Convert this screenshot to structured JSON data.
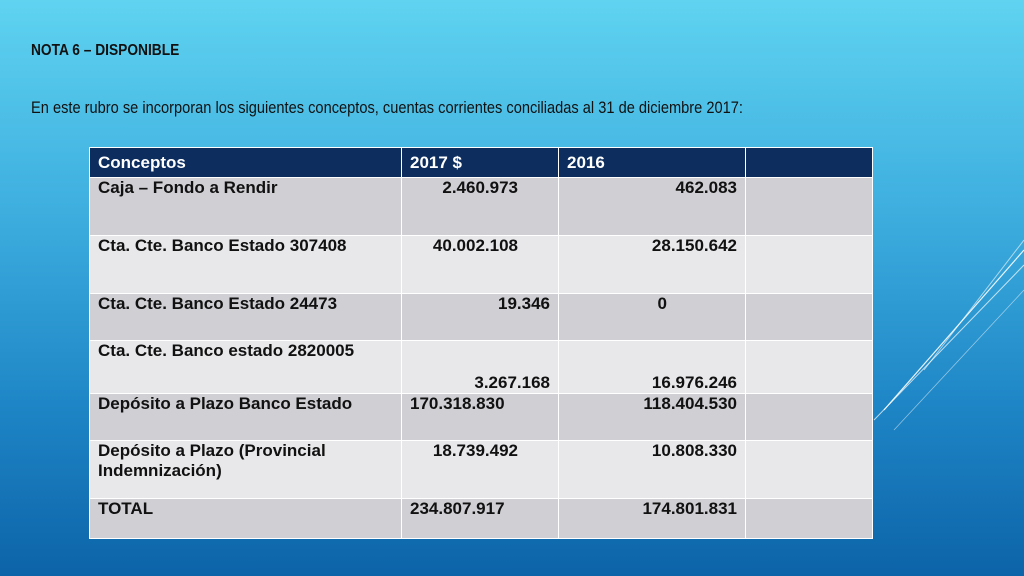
{
  "heading": "NOTA 6 – DISPONIBLE",
  "description": "En este rubro se incorporan los siguientes conceptos,  cuentas corrientes conciliadas al 31 de diciembre 2017:",
  "table": {
    "headers": [
      "Conceptos",
      "2017 $",
      "2016",
      ""
    ],
    "rows": [
      {
        "concept": "Caja – Fondo a Rendir",
        "y2017": "2.460.973",
        "y2016": "462.083"
      },
      {
        "concept": "Cta. Cte. Banco Estado 307408",
        "y2017": "40.002.108",
        "y2016": "28.150.642"
      },
      {
        "concept": "Cta. Cte. Banco Estado 24473",
        "y2017": "19.346",
        "y2016": "0"
      },
      {
        "concept": "Cta. Cte. Banco estado 2820005",
        "y2017": "3.267.168",
        "y2016": "16.976.246"
      },
      {
        "concept": "Depósito a Plazo Banco Estado",
        "y2017": "170.318.830",
        "y2016": "118.404.530"
      },
      {
        "concept": "Depósito a Plazo (Provincial Indemnización)",
        "y2017": "18.739.492",
        "y2016": "10.808.330"
      },
      {
        "concept": "TOTAL",
        "y2017": "234.807.917",
        "y2016": "174.801.831"
      }
    ]
  }
}
